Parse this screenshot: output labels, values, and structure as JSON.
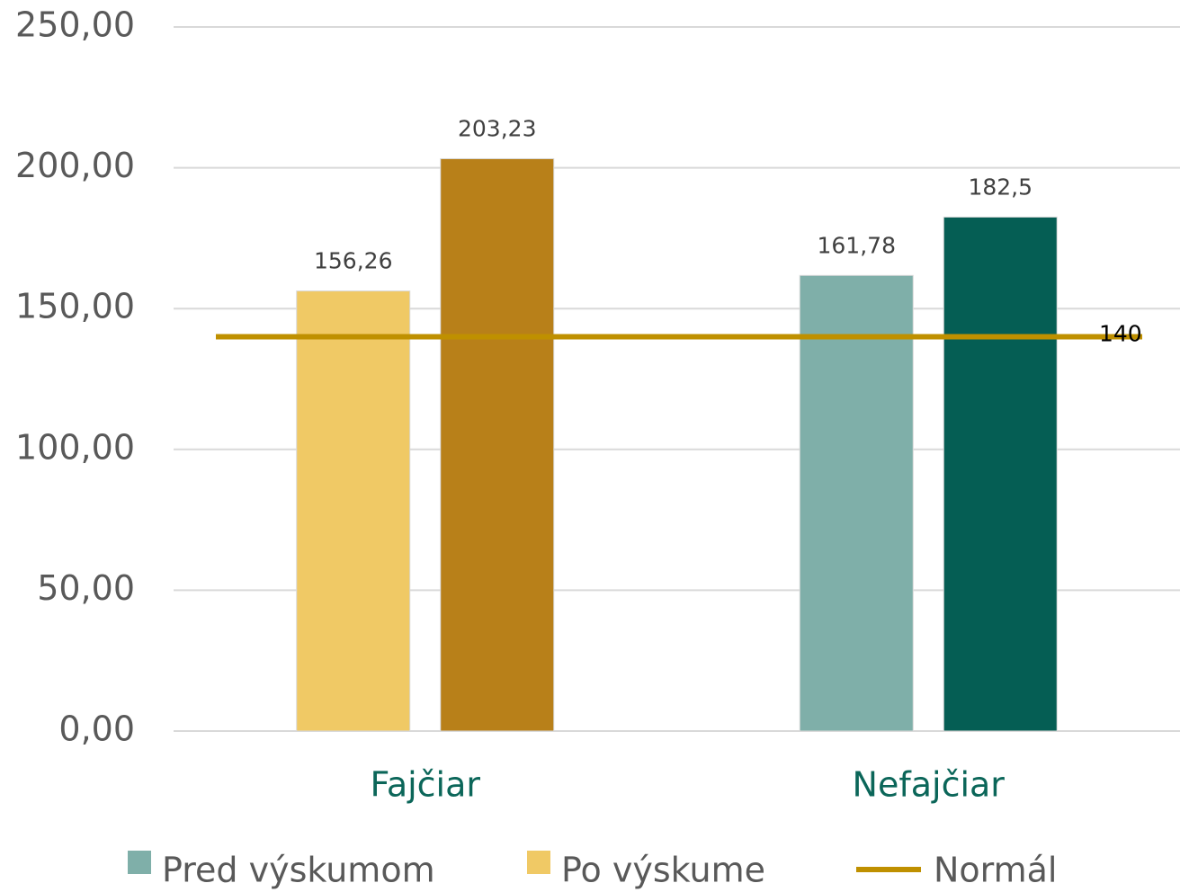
{
  "chart_data": {
    "type": "bar",
    "categories": [
      "Fajčiar",
      "Nefajčiar"
    ],
    "series": [
      {
        "name": "Pred výskumom",
        "color": "#7fafa9",
        "colors": [
          "#f0c965",
          "#7fafa9"
        ],
        "values": [
          156.26,
          161.78
        ],
        "value_labels": [
          "156,26",
          "161,78"
        ]
      },
      {
        "name": "Po výskume",
        "color": "#f0c965",
        "colors": [
          "#b88019",
          "#055e54"
        ],
        "values": [
          203.23,
          182.5
        ],
        "value_labels": [
          "203,23",
          "182,5"
        ]
      },
      {
        "name": "Normál",
        "type": "line",
        "color": "#bf9000",
        "values": [
          140,
          140
        ]
      }
    ],
    "ylim": [
      0,
      250
    ],
    "yticks": [
      {
        "value": 0,
        "label": "0,00"
      },
      {
        "value": 50,
        "label": "50,00"
      },
      {
        "value": 100,
        "label": "100,00"
      },
      {
        "value": 150,
        "label": "150,00"
      },
      {
        "value": 200,
        "label": "200,00"
      },
      {
        "value": 250,
        "label": "250,00"
      }
    ],
    "grid": true,
    "legend": "bottom"
  }
}
